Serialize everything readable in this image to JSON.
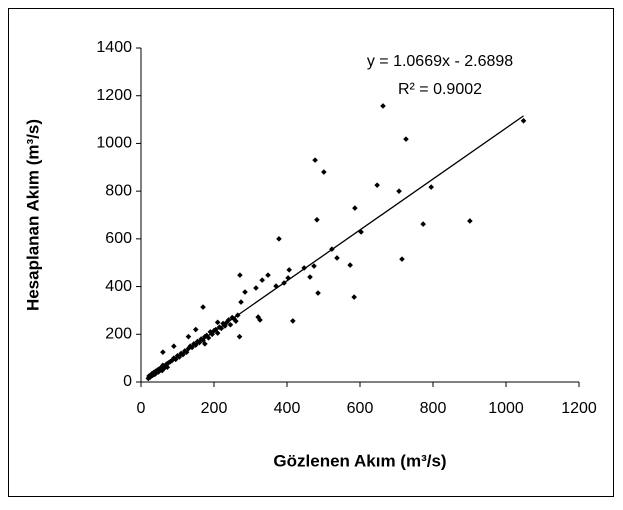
{
  "chart_data": {
    "type": "scatter",
    "x_label": "Gözlenen Akım (m³/s)",
    "y_label": "Hesaplanan Akım (m³/s)",
    "x": [
      20,
      22,
      25,
      28,
      30,
      32,
      35,
      38,
      40,
      42,
      45,
      48,
      50,
      55,
      58,
      60,
      62,
      65,
      70,
      72,
      75,
      80,
      85,
      90,
      95,
      100,
      105,
      110,
      115,
      120,
      125,
      130,
      135,
      140,
      145,
      150,
      155,
      160,
      165,
      170,
      175,
      180,
      185,
      190,
      195,
      200,
      205,
      210,
      215,
      220,
      225,
      230,
      235,
      240,
      245,
      250,
      255,
      260,
      265,
      270,
      60,
      90,
      130,
      150,
      175,
      210,
      1048,
      663,
      726,
      477,
      501,
      647,
      707,
      795,
      586,
      603,
      773,
      901,
      715,
      584,
      482,
      573,
      523,
      537,
      447,
      474,
      463,
      485,
      416,
      378,
      348,
      332,
      370,
      392,
      403,
      406,
      285,
      274,
      321,
      326,
      315,
      271,
      170
    ],
    "values": [
      15,
      25,
      20,
      30,
      35,
      28,
      40,
      32,
      45,
      38,
      50,
      42,
      55,
      60,
      48,
      70,
      55,
      65,
      75,
      62,
      80,
      85,
      90,
      100,
      95,
      110,
      105,
      120,
      115,
      130,
      125,
      140,
      150,
      145,
      160,
      155,
      170,
      165,
      180,
      175,
      190,
      195,
      185,
      210,
      200,
      215,
      220,
      205,
      230,
      225,
      245,
      235,
      250,
      260,
      240,
      270,
      265,
      255,
      280,
      190,
      125,
      150,
      190,
      220,
      160,
      250,
      1095,
      1157,
      1018,
      930,
      880,
      825,
      800,
      817,
      729,
      629,
      662,
      675,
      515,
      356,
      680,
      490,
      557,
      520,
      478,
      486,
      440,
      373,
      256,
      600,
      448,
      427,
      402,
      415,
      436,
      470,
      377,
      335,
      272,
      260,
      394,
      448,
      314
    ],
    "color": "#000000",
    "xlim": [
      0,
      1200
    ],
    "xticks": [
      0,
      200,
      400,
      600,
      800,
      1000,
      1200
    ],
    "ylim": [
      0,
      1400
    ],
    "yticks": [
      0,
      200,
      400,
      600,
      800,
      1000,
      1200,
      1400
    ],
    "trendline": {
      "slope": 1.0669,
      "intercept": -2.6898,
      "r2": 0.9002,
      "equation_label": "y = 1.0669x - 2.6898",
      "r2_label": "R² = 0.9002"
    }
  }
}
